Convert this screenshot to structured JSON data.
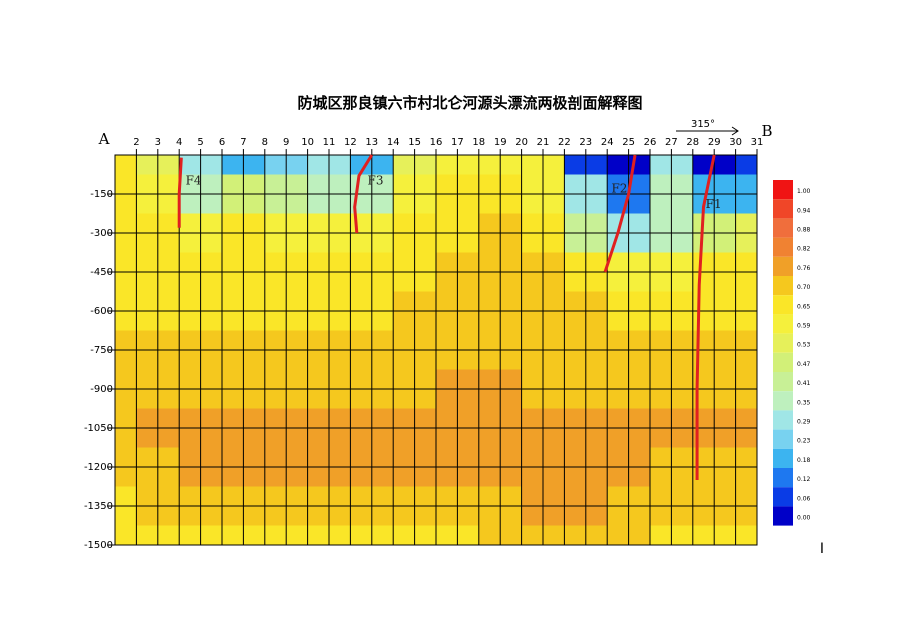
{
  "chart_data": {
    "type": "contour",
    "title": "防城区那良镇六市村北仑河源头漂流两极剖面解释图",
    "left_label": "A",
    "right_label": "B",
    "bearing": "315°",
    "corner_mark": "I",
    "xlim": [
      1,
      31
    ],
    "ylim": [
      0,
      -1500
    ],
    "xticks": [
      2,
      3,
      4,
      5,
      6,
      7,
      8,
      9,
      10,
      11,
      12,
      13,
      14,
      15,
      16,
      17,
      18,
      19,
      20,
      21,
      22,
      23,
      24,
      25,
      26,
      27,
      28,
      29,
      30,
      31
    ],
    "yticks": [
      -150,
      -300,
      -450,
      -600,
      -750,
      -900,
      -1050,
      -1200,
      -1350,
      -1500
    ],
    "grid": true,
    "x": [
      1,
      3,
      5,
      7,
      9,
      11,
      13,
      15,
      17,
      19,
      21,
      23,
      25,
      27,
      29,
      31
    ],
    "y": [
      0,
      -150,
      -300,
      -450,
      -600,
      -750,
      -900,
      -1050,
      -1200,
      -1350,
      -1500
    ],
    "z": [
      [
        0.65,
        0.55,
        0.3,
        0.2,
        0.25,
        0.3,
        0.2,
        0.55,
        0.6,
        0.62,
        0.6,
        0.1,
        0.05,
        0.3,
        0.05,
        0.1
      ],
      [
        0.65,
        0.6,
        0.4,
        0.5,
        0.45,
        0.4,
        0.35,
        0.6,
        0.65,
        0.65,
        0.62,
        0.3,
        0.15,
        0.35,
        0.2,
        0.2
      ],
      [
        0.68,
        0.66,
        0.6,
        0.65,
        0.64,
        0.6,
        0.62,
        0.66,
        0.68,
        0.7,
        0.68,
        0.45,
        0.3,
        0.4,
        0.5,
        0.55
      ],
      [
        0.68,
        0.66,
        0.66,
        0.66,
        0.66,
        0.66,
        0.66,
        0.68,
        0.7,
        0.7,
        0.7,
        0.65,
        0.6,
        0.62,
        0.65,
        0.66
      ],
      [
        0.66,
        0.68,
        0.68,
        0.68,
        0.68,
        0.68,
        0.68,
        0.7,
        0.7,
        0.7,
        0.7,
        0.7,
        0.68,
        0.68,
        0.68,
        0.68
      ],
      [
        0.7,
        0.7,
        0.7,
        0.7,
        0.7,
        0.7,
        0.7,
        0.72,
        0.72,
        0.72,
        0.72,
        0.7,
        0.7,
        0.7,
        0.7,
        0.7
      ],
      [
        0.72,
        0.74,
        0.74,
        0.74,
        0.74,
        0.74,
        0.74,
        0.74,
        0.76,
        0.78,
        0.74,
        0.74,
        0.74,
        0.72,
        0.72,
        0.72
      ],
      [
        0.74,
        0.76,
        0.78,
        0.76,
        0.78,
        0.8,
        0.8,
        0.78,
        0.76,
        0.78,
        0.78,
        0.76,
        0.76,
        0.76,
        0.76,
        0.78
      ],
      [
        0.72,
        0.74,
        0.76,
        0.76,
        0.76,
        0.76,
        0.76,
        0.76,
        0.76,
        0.76,
        0.76,
        0.76,
        0.76,
        0.74,
        0.74,
        0.74
      ],
      [
        0.68,
        0.7,
        0.7,
        0.72,
        0.72,
        0.7,
        0.7,
        0.72,
        0.72,
        0.74,
        0.76,
        0.8,
        0.74,
        0.72,
        0.7,
        0.7
      ],
      [
        0.66,
        0.66,
        0.68,
        0.68,
        0.68,
        0.66,
        0.66,
        0.68,
        0.68,
        0.7,
        0.7,
        0.72,
        0.7,
        0.68,
        0.68,
        0.66
      ]
    ],
    "colorbar": [
      {
        "value": 1,
        "label": "1.00"
      },
      {
        "value": 0.94,
        "label": "0.94"
      },
      {
        "value": 0.88,
        "label": "0.88"
      },
      {
        "value": 0.82,
        "label": "0.82"
      },
      {
        "value": 0.76,
        "label": "0.76"
      },
      {
        "value": 0.7,
        "label": "0.70"
      },
      {
        "value": 0.65,
        "label": "0.65"
      },
      {
        "value": 0.59,
        "label": "0.59"
      },
      {
        "value": 0.53,
        "label": "0.53"
      },
      {
        "value": 0.47,
        "label": "0.47"
      },
      {
        "value": 0.41,
        "label": "0.41"
      },
      {
        "value": 0.35,
        "label": "0.35"
      },
      {
        "value": 0.29,
        "label": "0.29"
      },
      {
        "value": 0.23,
        "label": "0.23"
      },
      {
        "value": 0.18,
        "label": "0.18"
      },
      {
        "value": 0.12,
        "label": "0.12"
      },
      {
        "value": 0.06,
        "label": "0.06"
      },
      {
        "value": 0,
        "label": "0.00"
      }
    ],
    "colors": [
      "#f01414",
      "#f04628",
      "#f06e3c",
      "#f08232",
      "#f0a028",
      "#f5c81e",
      "#fae628",
      "#f5f03c",
      "#e6f05a",
      "#d2f078",
      "#c8f096",
      "#bef0be",
      "#a0e6e6",
      "#78d2f0",
      "#3cb4f0",
      "#1e78f0",
      "#0a3ce6",
      "#0000c8"
    ],
    "fault_color": "#e02020",
    "faults": [
      {
        "name": "F1",
        "x": [
          29,
          28.5,
          28.3,
          28.2,
          28.2
        ],
        "y": [
          0,
          -200,
          -500,
          -900,
          -1250
        ],
        "label_x": 28.6,
        "label_y": -190
      },
      {
        "name": "F2",
        "x": [
          25.3,
          25,
          24.5,
          23.9
        ],
        "y": [
          0,
          -150,
          -300,
          -450
        ],
        "label_x": 24.2,
        "label_y": -130
      },
      {
        "name": "F3",
        "x": [
          13,
          12.4,
          12.2,
          12.3
        ],
        "y": [
          0,
          -80,
          -200,
          -300
        ],
        "label_x": 12.8,
        "label_y": -100
      },
      {
        "name": "F4",
        "x": [
          4.1,
          4,
          4
        ],
        "y": [
          -10,
          -150,
          -280
        ],
        "label_x": 4.3,
        "label_y": -100
      }
    ]
  }
}
